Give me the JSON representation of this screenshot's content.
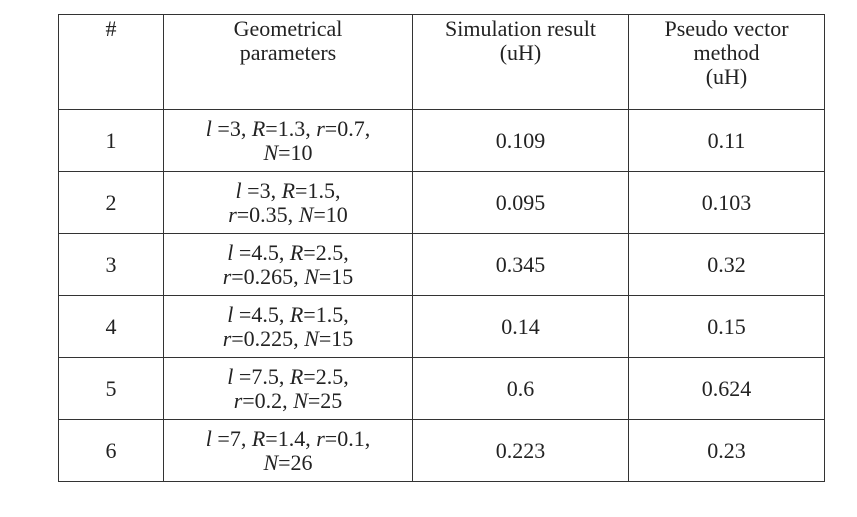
{
  "table": {
    "header": [
      [
        "#"
      ],
      [
        "Geometrical",
        "parameters"
      ],
      [
        "Simulation result",
        "(uH)"
      ],
      [
        "Pseudo vector",
        "method",
        "(uH)"
      ]
    ],
    "rows": [
      [
        [
          "1"
        ],
        [
          "l =3, R=1.3, r=0.7,",
          "N=10"
        ],
        [
          "0.109"
        ],
        [
          "0.11"
        ]
      ],
      [
        [
          "2"
        ],
        [
          "l =3, R=1.5,",
          "r=0.35, N=10"
        ],
        [
          "0.095"
        ],
        [
          "0.103"
        ]
      ],
      [
        [
          "3"
        ],
        [
          "l =4.5, R=2.5,",
          "r=0.265, N=15"
        ],
        [
          "0.345"
        ],
        [
          "0.32"
        ]
      ],
      [
        [
          "4"
        ],
        [
          "l =4.5, R=1.5,",
          "r=0.225, N=15"
        ],
        [
          "0.14"
        ],
        [
          "0.15"
        ]
      ],
      [
        [
          "5"
        ],
        [
          "l =7.5, R=2.5,",
          "r=0.2, N=25"
        ],
        [
          "0.6"
        ],
        [
          "0.624"
        ]
      ],
      [
        [
          "6"
        ],
        [
          "l =7, R=1.4, r=0.1,",
          "N=26"
        ],
        [
          "0.223"
        ],
        [
          "0.23"
        ]
      ]
    ]
  }
}
